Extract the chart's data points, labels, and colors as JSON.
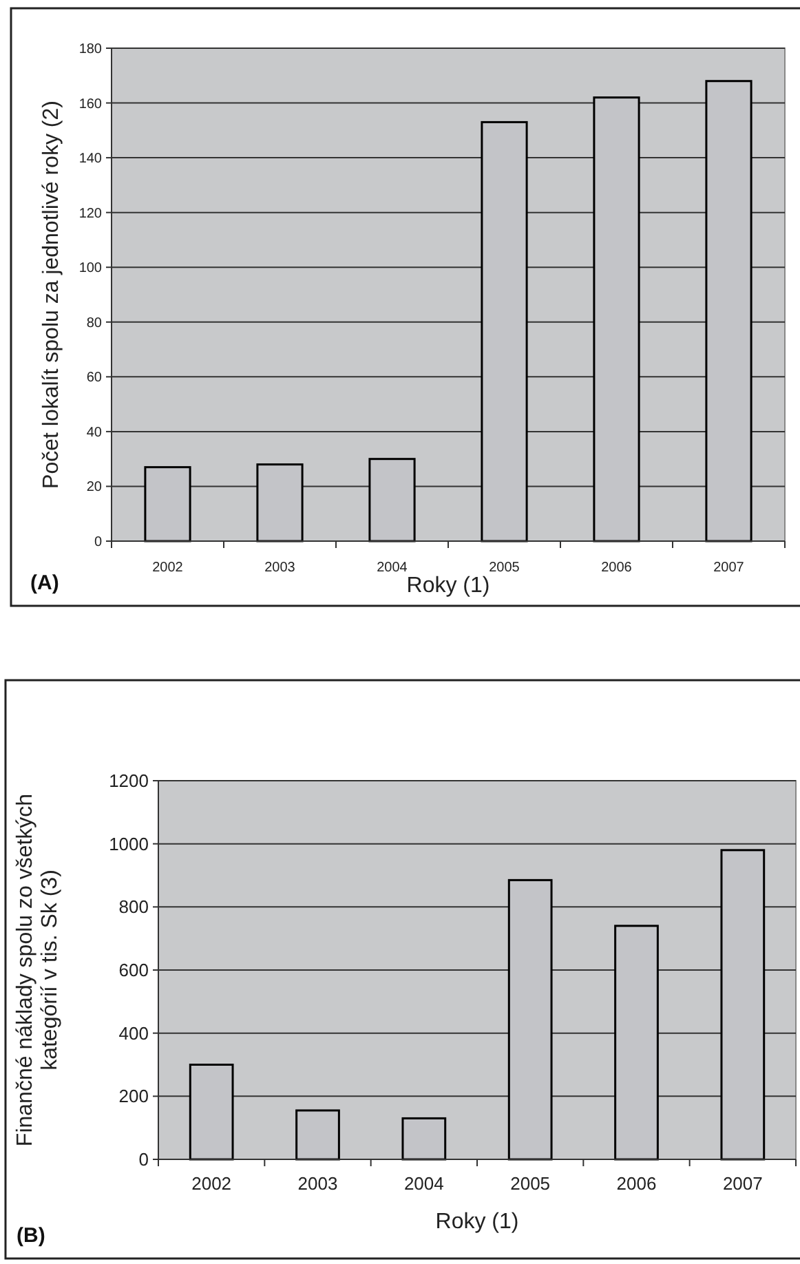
{
  "chart_data": [
    {
      "type": "bar",
      "categories": [
        "2002",
        "2003",
        "2004",
        "2005",
        "2006",
        "2007"
      ],
      "values": [
        27,
        28,
        30,
        153,
        162,
        168
      ],
      "color": "#c3c4c8",
      "xlabel": "Roky (1)",
      "ylabel": "Počet lokalít spolu za jednotlivé roky (2)",
      "ylim": [
        0,
        180
      ],
      "yticks": [
        0,
        20,
        40,
        60,
        80,
        100,
        120,
        140,
        160,
        180
      ],
      "grid": "y",
      "annotations": [
        "(A)"
      ]
    },
    {
      "type": "bar",
      "categories": [
        "2002",
        "2003",
        "2004",
        "2005",
        "2006",
        "2007"
      ],
      "values": [
        300,
        155,
        130,
        885,
        740,
        980
      ],
      "color": "#c3c4c8",
      "xlabel": "Roky (1)",
      "ylabel": "Finančné náklady spolu zo všetkých kategórií v tis. Sk (3)",
      "ylim": [
        0,
        1200
      ],
      "yticks": [
        0,
        200,
        400,
        600,
        800,
        1000,
        1200
      ],
      "grid": "y",
      "annotations": [
        "(B)"
      ]
    }
  ]
}
